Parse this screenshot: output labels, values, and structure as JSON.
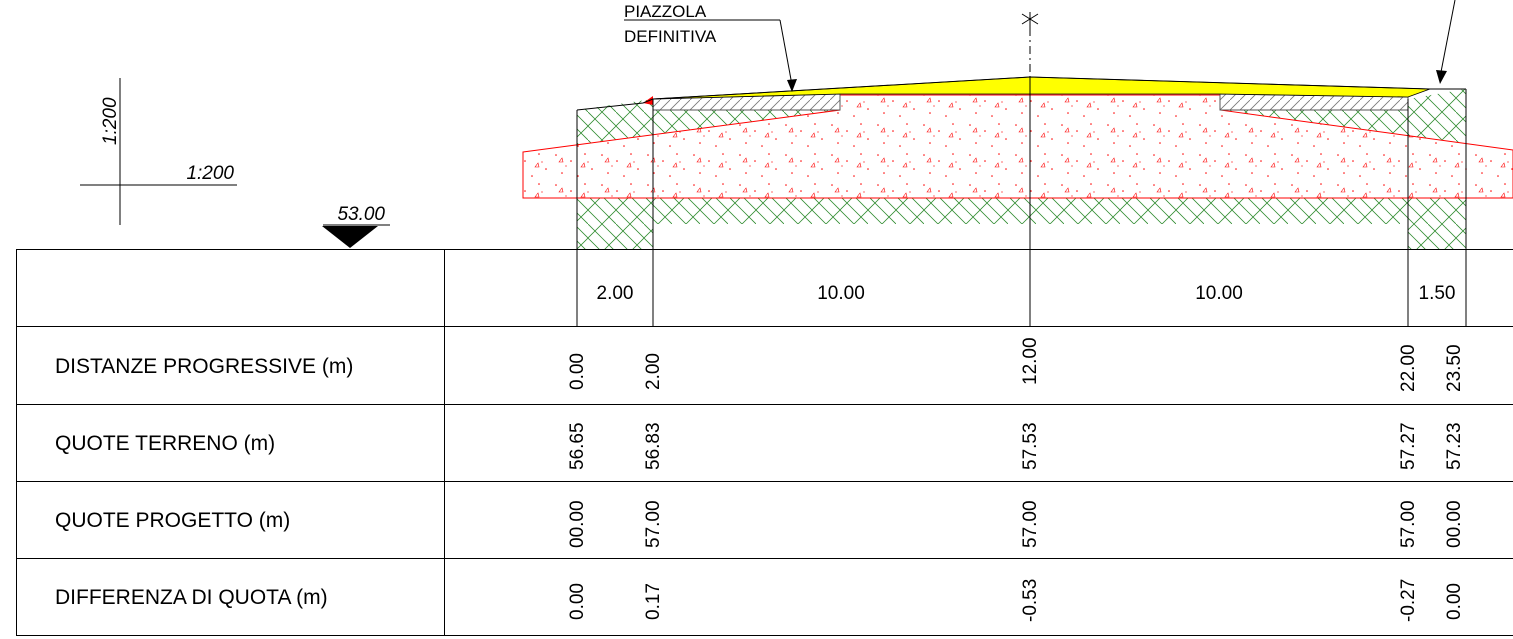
{
  "annotations": {
    "label_line1": "PIAZZOLA",
    "label_line2": "DEFINITIVA",
    "scale_vertical": "1:200",
    "scale_horizontal": "1:200",
    "datum": "53.00"
  },
  "segments": [
    "2.00",
    "10.00",
    "10.00",
    "1.50"
  ],
  "rows": [
    {
      "label": "DISTANZE PROGRESSIVE (m)",
      "values": [
        "0.00",
        "2.00",
        "12.00",
        "22.00",
        "23.50"
      ]
    },
    {
      "label": "QUOTE TERRENO (m)",
      "values": [
        "56.65",
        "56.83",
        "57.53",
        "57.27",
        "57.23"
      ]
    },
    {
      "label": "QUOTE PROGETTO (m)",
      "values": [
        "00.00",
        "57.00",
        "57.00",
        "57.00",
        "00.00"
      ]
    },
    {
      "label": "DIFFERENZA DI QUOTA (m)",
      "values": [
        "0.00",
        "0.17",
        "-0.53",
        "-0.27",
        "0.00"
      ]
    }
  ],
  "colors": {
    "fill_yellow": "#ffff00",
    "fill_red": "#ff0000",
    "hatch_green": "#2e8b2e",
    "line": "#000000"
  }
}
